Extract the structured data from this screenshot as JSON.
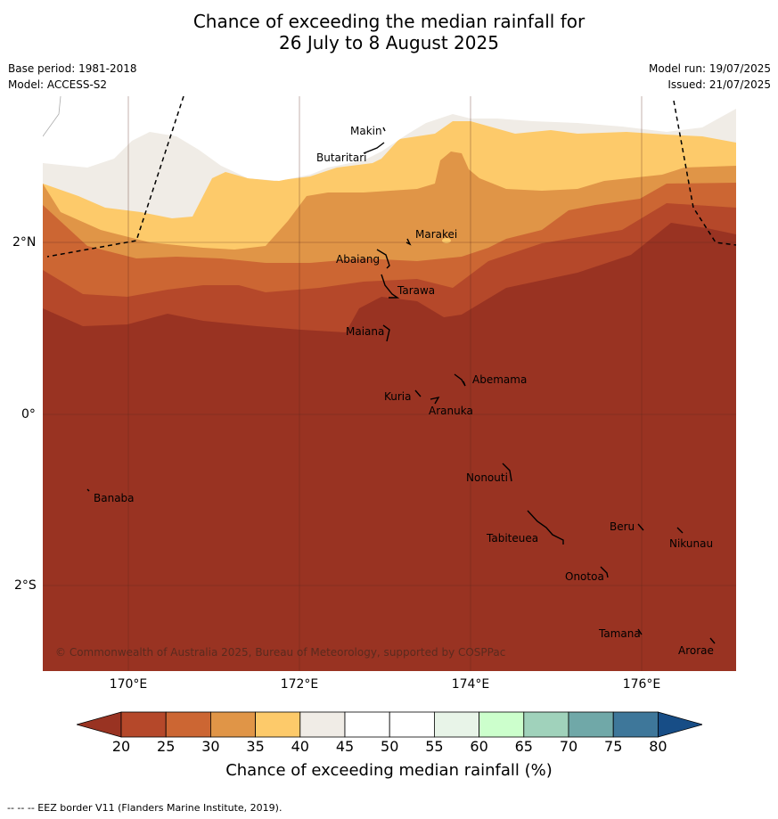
{
  "title_line1": "Chance of exceeding the median rainfall for",
  "title_line2": "26 July to 8 August 2025",
  "base_period": "Base period: 1981-2018",
  "model": "Model: ACCESS-S2",
  "model_run": "Model run: 19/07/2025",
  "issued": "Issued: 21/07/2025",
  "copyright": "© Commonwealth of Australia 2025, Bureau of Meteorology, supported by COSPPac",
  "lon_labels": [
    "170°E",
    "172°E",
    "174°E",
    "176°E"
  ],
  "lat_labels": [
    "2°N",
    "0°",
    "2°S"
  ],
  "places": {
    "makin": "Makin",
    "butaritari": "Butaritari",
    "marakei": "Marakei",
    "abaiang": "Abaiang",
    "tarawa": "Tarawa",
    "maiana": "Maiana",
    "abemama": "Abemama",
    "kuria": "Kuria",
    "aranuka": "Aranuka",
    "nonouti": "Nonouti",
    "banaba": "Banaba",
    "beru": "Beru",
    "nikunau": "Nikunau",
    "tabiteuea": "Tabiteuea",
    "onotoa": "Onotoa",
    "tamana": "Tamana",
    "arorae": "Arorae"
  },
  "colorbar": {
    "ticks": [
      "20",
      "25",
      "30",
      "35",
      "40",
      "45",
      "50",
      "55",
      "60",
      "65",
      "70",
      "75",
      "80"
    ],
    "colors": [
      "#993322",
      "#b5482a",
      "#cc6633",
      "#e09547",
      "#fdca6a",
      "#f0ece6",
      "#ffffff",
      "#ffffff",
      "#e8f4e8",
      "#ccffcc",
      "#a0d2bb",
      "#70a8a8",
      "#3e779a",
      "#174d86"
    ],
    "label": "Chance of exceeding median rainfall (%)"
  },
  "footer": "--  --  -- EEZ border V11 (Flanders Marine Institute, 2019)."
}
